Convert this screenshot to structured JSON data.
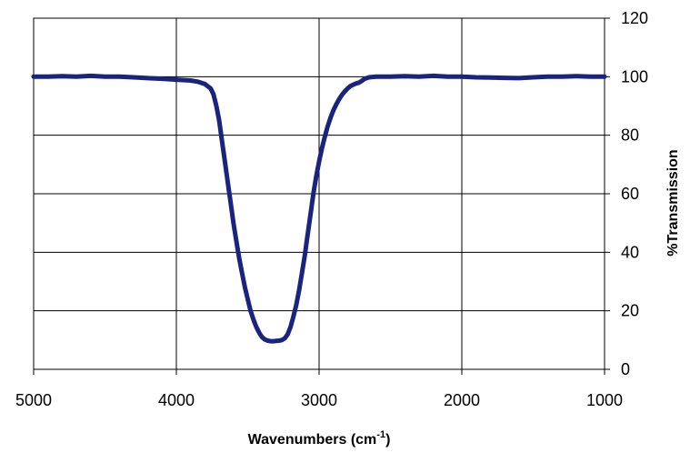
{
  "chart_data": {
    "type": "line",
    "title": "",
    "xlabel": "Wavenumbers (cm",
    "xlabel_sup": "-1",
    "xlabel_tail": ")",
    "ylabel": "%Transmission",
    "xlim": [
      5000,
      1000
    ],
    "ylim": [
      0,
      120
    ],
    "x_reversed": true,
    "y_axis_side": "right",
    "grid": true,
    "x_ticks": [
      "5000",
      "4000",
      "3000",
      "2000",
      "1000"
    ],
    "y_ticks": [
      "0",
      "20",
      "40",
      "60",
      "80",
      "100",
      "120"
    ],
    "line_color": "#1a237e",
    "series": [
      {
        "x": [
          5000,
          4900,
          4800,
          4700,
          4600,
          4500,
          4400,
          4300,
          4200,
          4100,
          4000,
          3900,
          3850,
          3800,
          3760,
          3740,
          3720,
          3700,
          3680,
          3660,
          3640,
          3620,
          3600,
          3580,
          3560,
          3540,
          3520,
          3500,
          3480,
          3460,
          3440,
          3420,
          3400,
          3380,
          3360,
          3340,
          3320,
          3300,
          3280,
          3260,
          3240,
          3220,
          3200,
          3180,
          3160,
          3140,
          3120,
          3100,
          3080,
          3060,
          3040,
          3020,
          3000,
          2980,
          2960,
          2940,
          2920,
          2900,
          2880,
          2860,
          2840,
          2820,
          2800,
          2780,
          2760,
          2740,
          2720,
          2700,
          2680,
          2650,
          2600,
          2500,
          2400,
          2300,
          2200,
          2100,
          2000,
          1900,
          1800,
          1700,
          1600,
          1500,
          1400,
          1300,
          1200,
          1100,
          1000
        ],
        "y": [
          100,
          100,
          100.2,
          100,
          100.3,
          100,
          100,
          99.8,
          99.5,
          99.3,
          99,
          98.7,
          98.3,
          97.5,
          96,
          94,
          90,
          85,
          78,
          71,
          64,
          57,
          50,
          44,
          38,
          33,
          28,
          24,
          20,
          17,
          14.5,
          12.5,
          11,
          10.2,
          9.8,
          9.6,
          9.6,
          9.7,
          9.8,
          10,
          10.6,
          12,
          14.5,
          18,
          22,
          27,
          33,
          39,
          46,
          53,
          60,
          66,
          71,
          75.5,
          79.5,
          83,
          86,
          88.5,
          90.5,
          92.3,
          93.8,
          95,
          96,
          96.8,
          97.3,
          97.7,
          98,
          98.6,
          99.3,
          99.8,
          100,
          100,
          100.2,
          100,
          100.3,
          100,
          100,
          99.8,
          99.7,
          99.6,
          99.5,
          99.8,
          100,
          100,
          100.2,
          100,
          100
        ]
      }
    ]
  }
}
